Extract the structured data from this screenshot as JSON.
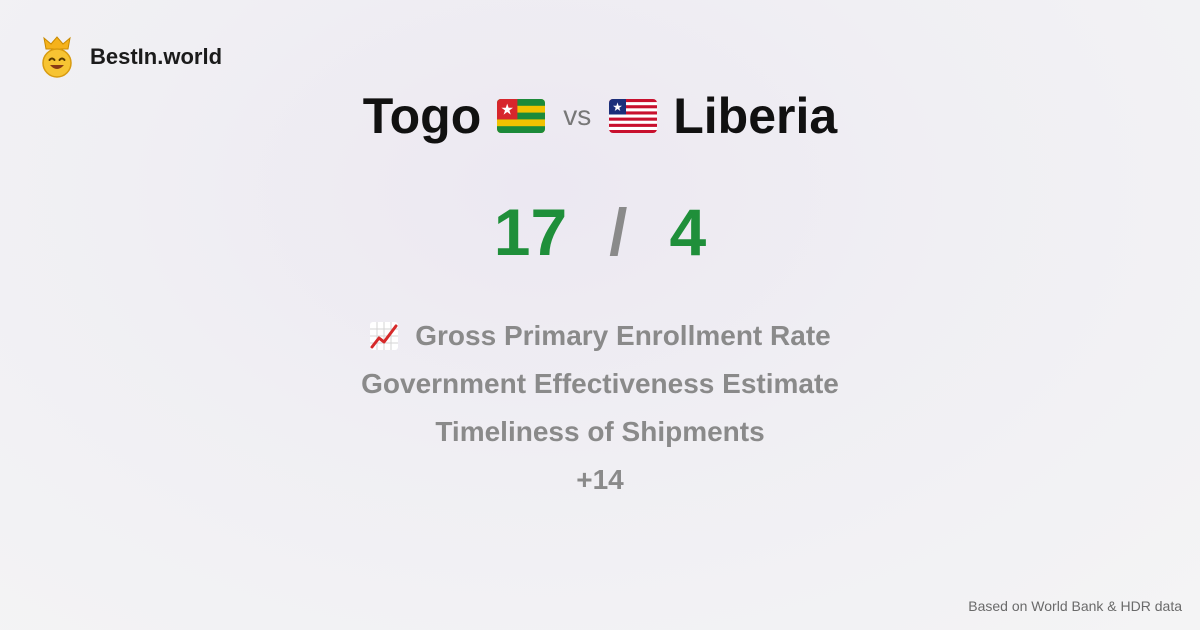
{
  "brand": {
    "name": "BestIn.world",
    "icon": "crowned-smiley-icon"
  },
  "comparison": {
    "left": {
      "country": "Togo",
      "flag": "togo-flag-icon",
      "score": "17"
    },
    "vs_label": "vs",
    "right": {
      "country": "Liberia",
      "flag": "liberia-flag-icon",
      "score": "4"
    },
    "separator": "/"
  },
  "metrics": {
    "icon": "chart-increasing-icon",
    "items": [
      "Gross Primary Enrollment Rate",
      "Government Effectiveness Estimate",
      "Timeliness of Shipments",
      "+14"
    ]
  },
  "footer": {
    "source": "Based on World Bank & HDR data"
  },
  "colors": {
    "score": "#1f8f3a",
    "muted": "#8a8a8a",
    "title": "#111111"
  }
}
